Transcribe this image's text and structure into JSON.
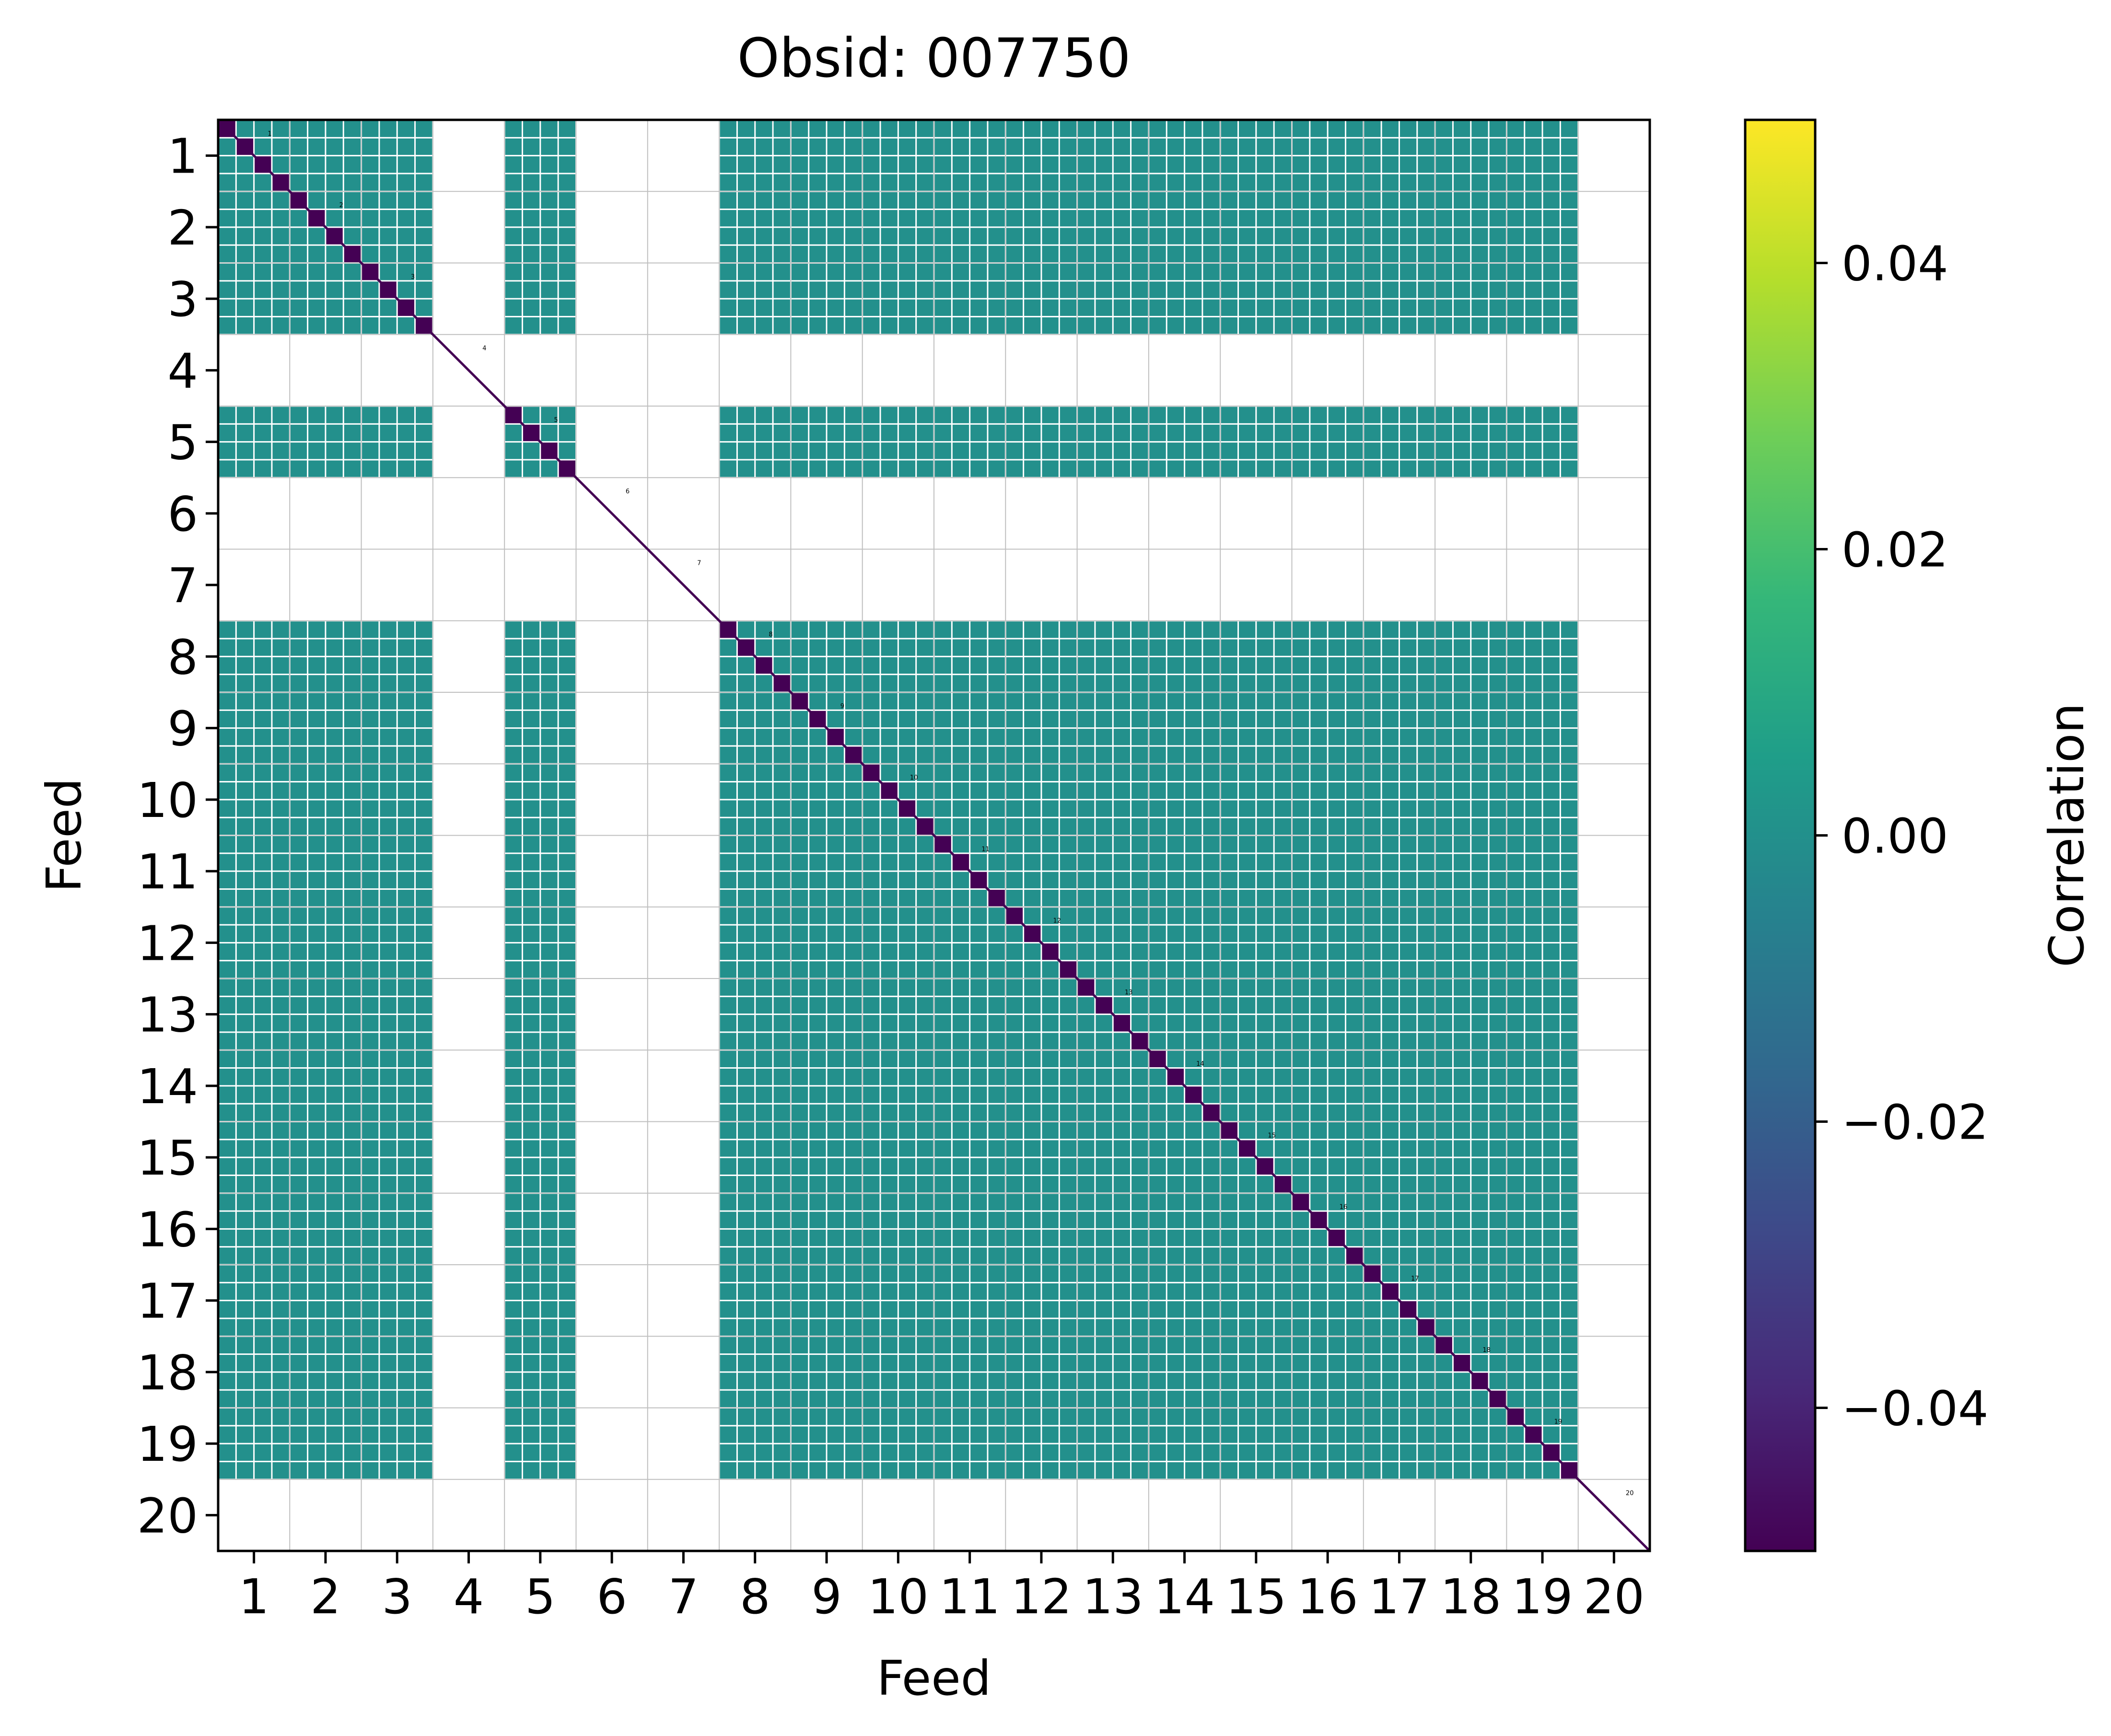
{
  "chart_data": {
    "type": "heatmap",
    "title": "Obsid: 007750",
    "xlabel": "Feed",
    "ylabel": "Feed",
    "colorbar_label": "Correlation",
    "colormap": "viridis",
    "color_limits": [
      -0.05,
      0.05
    ],
    "colorbar_ticks": [
      0.04,
      0.02,
      0.0,
      -0.02,
      -0.04
    ],
    "colorbar_tick_labels": [
      "0.04",
      "0.02",
      "0.00",
      "−0.02",
      "−0.04"
    ],
    "feeds": [
      "1",
      "2",
      "3",
      "4",
      "5",
      "6",
      "7",
      "8",
      "9",
      "10",
      "11",
      "12",
      "13",
      "14",
      "15",
      "16",
      "17",
      "18",
      "19",
      "20"
    ],
    "subcells_per_feed": 4,
    "active_feeds": [
      "1",
      "2",
      "3",
      "5",
      "8",
      "9",
      "10",
      "11",
      "12",
      "13",
      "14",
      "15",
      "16",
      "17",
      "18",
      "19"
    ],
    "inactive_feeds": [
      "4",
      "6",
      "7",
      "20"
    ],
    "offdiagonal_value": 0.0,
    "diagonal_value": -0.05,
    "diagonal_labels": [
      "1",
      "2",
      "3",
      "4",
      "5",
      "6",
      "7",
      "8",
      "9",
      "10",
      "11",
      "12",
      "13",
      "14",
      "15",
      "16",
      "17",
      "18",
      "19",
      "20"
    ],
    "colors": {
      "offdiagonal": "#21908d",
      "diagonal": "#440154",
      "grid": "#bfbfbf",
      "viridis_stops": [
        "#440154",
        "#482878",
        "#3e4989",
        "#31688e",
        "#26828e",
        "#1f9e89",
        "#35b779",
        "#6ece58",
        "#b5de2b",
        "#fde725"
      ]
    }
  }
}
